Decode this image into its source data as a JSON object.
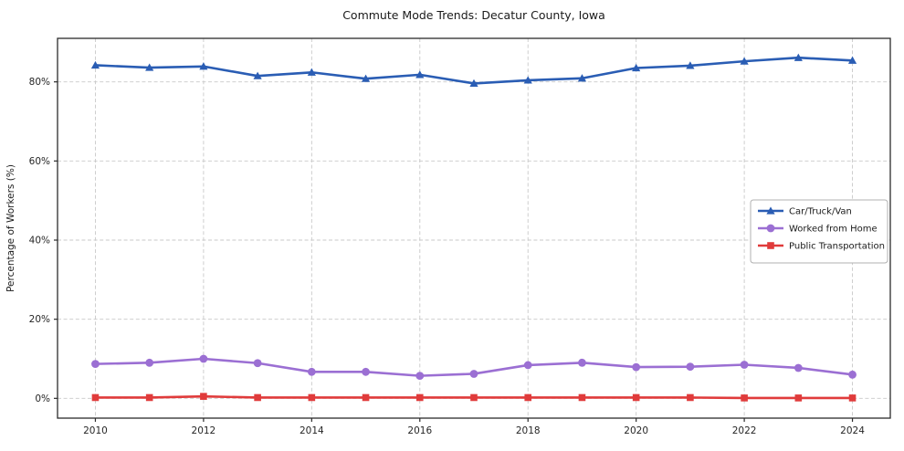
{
  "chart_data": {
    "type": "line",
    "title": "Commute Mode Trends: Decatur County, Iowa",
    "xlabel": "",
    "ylabel": "Percentage of Workers (%)",
    "x": [
      2010,
      2011,
      2012,
      2013,
      2014,
      2015,
      2016,
      2017,
      2018,
      2019,
      2020,
      2021,
      2022,
      2023,
      2024
    ],
    "series": [
      {
        "name": "Car/Truck/Van",
        "color": "#2a5db4",
        "marker": "triangle",
        "values": [
          84.2,
          83.6,
          83.9,
          81.5,
          82.4,
          80.8,
          81.8,
          79.6,
          80.4,
          80.9,
          83.5,
          84.1,
          85.2,
          86.1,
          85.4
        ]
      },
      {
        "name": "Worked from Home",
        "color": "#9b6fd3",
        "marker": "circle",
        "values": [
          8.7,
          9.0,
          10.0,
          8.9,
          6.7,
          6.7,
          5.7,
          6.2,
          8.4,
          9.0,
          7.9,
          8.0,
          8.5,
          7.7,
          6.0
        ]
      },
      {
        "name": "Public Transportation",
        "color": "#e03b3b",
        "marker": "square",
        "values": [
          0.2,
          0.2,
          0.5,
          0.2,
          0.2,
          0.2,
          0.2,
          0.2,
          0.2,
          0.2,
          0.2,
          0.2,
          0.1,
          0.1,
          0.1
        ]
      }
    ],
    "xticks": [
      2010,
      2012,
      2014,
      2016,
      2018,
      2020,
      2022,
      2024
    ],
    "yticks": [
      0,
      20,
      40,
      60,
      80
    ],
    "ytick_labels": [
      "0%",
      "20%",
      "40%",
      "60%",
      "80%"
    ],
    "xlim": [
      2009.3,
      2024.7
    ],
    "ylim": [
      -5,
      91
    ],
    "grid": true,
    "legend_position": "center-right",
    "colors": {
      "grid": "#c9c9c9",
      "spine": "#2b2b2b",
      "background": "#ffffff"
    }
  }
}
